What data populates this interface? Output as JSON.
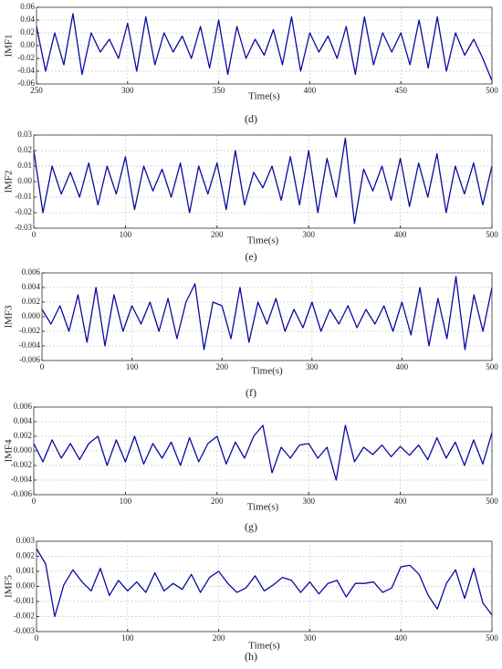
{
  "chart_data": [
    {
      "type": "line",
      "y_label": "IMF1",
      "x_label": "Time(s)",
      "caption": "(d)",
      "color": "#0a0aa0",
      "grid": true,
      "xlim": [
        250,
        500
      ],
      "xticks": [
        250,
        300,
        350,
        400,
        450,
        500
      ],
      "ylim": [
        -0.06,
        0.06
      ],
      "yticks": [
        -0.06,
        -0.04,
        -0.02,
        {
          "value": 0,
          "label": "0.00"
        },
        0.02,
        0.04,
        0.06
      ],
      "x": [
        250,
        255,
        260,
        265,
        270,
        275,
        280,
        285,
        290,
        295,
        300,
        305,
        310,
        315,
        320,
        325,
        330,
        335,
        340,
        345,
        350,
        355,
        360,
        365,
        370,
        375,
        380,
        385,
        390,
        395,
        400,
        405,
        410,
        415,
        420,
        425,
        430,
        435,
        440,
        445,
        450,
        455,
        460,
        465,
        470,
        475,
        480,
        485,
        490,
        495,
        500
      ],
      "values": [
        0.03,
        -0.04,
        0.02,
        -0.03,
        0.05,
        -0.045,
        0.02,
        -0.01,
        0.01,
        -0.02,
        0.035,
        -0.04,
        0.045,
        -0.03,
        0.02,
        -0.01,
        0.015,
        -0.02,
        0.03,
        -0.035,
        0.04,
        -0.045,
        0.03,
        -0.02,
        0.01,
        -0.015,
        0.025,
        -0.03,
        0.045,
        -0.04,
        0.02,
        -0.01,
        0.015,
        -0.02,
        0.03,
        -0.045,
        0.045,
        -0.03,
        0.02,
        -0.01,
        0.02,
        -0.03,
        0.04,
        -0.035,
        0.045,
        -0.04,
        0.02,
        -0.015,
        0.01,
        -0.02,
        -0.055
      ]
    },
    {
      "type": "line",
      "y_label": "IMF2",
      "x_label": "Time(s)",
      "caption": "(e)",
      "color": "#0a0aa0",
      "grid": true,
      "xlim": [
        0,
        500
      ],
      "xticks": [
        0,
        100,
        200,
        300,
        400,
        500
      ],
      "ylim": [
        -0.03,
        0.03
      ],
      "yticks": [
        -0.03,
        -0.02,
        -0.01,
        {
          "value": 0,
          "label": "0.00"
        },
        0.01,
        0.02,
        0.03
      ],
      "x": [
        0,
        10,
        20,
        30,
        40,
        50,
        60,
        70,
        80,
        90,
        100,
        110,
        120,
        130,
        140,
        150,
        160,
        170,
        180,
        190,
        200,
        210,
        220,
        230,
        240,
        250,
        260,
        270,
        280,
        290,
        300,
        310,
        320,
        330,
        340,
        350,
        360,
        370,
        380,
        390,
        400,
        410,
        420,
        430,
        440,
        450,
        460,
        470,
        480,
        490,
        500
      ],
      "values": [
        0.02,
        -0.02,
        0.01,
        -0.008,
        0.006,
        -0.01,
        0.012,
        -0.015,
        0.01,
        -0.008,
        0.016,
        -0.018,
        0.01,
        -0.006,
        0.008,
        -0.01,
        0.012,
        -0.02,
        0.01,
        -0.008,
        0.012,
        -0.018,
        0.02,
        -0.015,
        0.006,
        -0.004,
        0.01,
        -0.012,
        0.016,
        -0.015,
        0.02,
        -0.02,
        0.015,
        -0.01,
        0.028,
        -0.027,
        0.008,
        -0.006,
        0.01,
        -0.012,
        0.015,
        -0.016,
        0.012,
        -0.01,
        0.018,
        -0.02,
        0.01,
        -0.008,
        0.012,
        -0.015,
        0.01
      ]
    },
    {
      "type": "line",
      "y_label": "IMF3",
      "x_label": "Time(s)",
      "caption": "(f)",
      "color": "#0a0aa0",
      "grid": true,
      "xlim": [
        0,
        500
      ],
      "xticks": [
        0,
        100,
        200,
        300,
        400,
        500
      ],
      "ylim": [
        -0.006,
        0.006
      ],
      "yticks": [
        -0.006,
        -0.004,
        -0.002,
        {
          "value": 0,
          "label": "0.000"
        },
        0.002,
        0.004,
        0.006
      ],
      "x": [
        0,
        10,
        20,
        30,
        40,
        50,
        60,
        70,
        80,
        90,
        100,
        110,
        120,
        130,
        140,
        150,
        160,
        170,
        180,
        190,
        200,
        210,
        220,
        230,
        240,
        250,
        260,
        270,
        280,
        290,
        300,
        310,
        320,
        330,
        340,
        350,
        360,
        370,
        380,
        390,
        400,
        410,
        420,
        430,
        440,
        450,
        460,
        470,
        480,
        490,
        500
      ],
      "values": [
        0.001,
        -0.001,
        0.0015,
        -0.002,
        0.003,
        -0.0035,
        0.004,
        -0.004,
        0.003,
        -0.002,
        0.0015,
        -0.001,
        0.002,
        -0.002,
        0.0025,
        -0.003,
        0.002,
        0.0045,
        -0.0045,
        0.002,
        0.0015,
        -0.003,
        0.004,
        -0.0035,
        0.002,
        -0.001,
        0.0025,
        -0.002,
        0.001,
        -0.0015,
        0.002,
        -0.002,
        0.001,
        -0.001,
        0.0015,
        -0.0015,
        0.001,
        -0.001,
        0.0015,
        -0.002,
        0.002,
        -0.0025,
        0.004,
        -0.004,
        0.0025,
        -0.003,
        0.0055,
        -0.0045,
        0.003,
        -0.002,
        0.004
      ]
    },
    {
      "type": "line",
      "y_label": "IMF4",
      "x_label": "Time(s)",
      "caption": "(g)",
      "color": "#0a0aa0",
      "grid": true,
      "xlim": [
        0,
        500
      ],
      "xticks": [
        0,
        100,
        200,
        300,
        400,
        500
      ],
      "ylim": [
        -0.006,
        0.006
      ],
      "yticks": [
        -0.006,
        -0.004,
        -0.002,
        {
          "value": 0,
          "label": "0.000"
        },
        0.002,
        0.004,
        0.006
      ],
      "x": [
        0,
        10,
        20,
        30,
        40,
        50,
        60,
        70,
        80,
        90,
        100,
        110,
        120,
        130,
        140,
        150,
        160,
        170,
        180,
        190,
        200,
        210,
        220,
        230,
        240,
        250,
        260,
        270,
        280,
        290,
        300,
        310,
        320,
        330,
        340,
        350,
        360,
        370,
        380,
        390,
        400,
        410,
        420,
        430,
        440,
        450,
        460,
        470,
        480,
        490,
        500
      ],
      "values": [
        0.001,
        -0.0015,
        0.0015,
        -0.001,
        0.001,
        -0.0012,
        0.001,
        0.002,
        -0.002,
        0.0015,
        -0.0015,
        0.002,
        -0.0018,
        0.001,
        -0.001,
        0.0012,
        -0.002,
        0.0018,
        -0.0015,
        0.001,
        0.002,
        -0.0018,
        0.0012,
        -0.001,
        0.002,
        0.0035,
        -0.003,
        0.0005,
        -0.001,
        0.0008,
        0.001,
        -0.001,
        0.0005,
        -0.004,
        0.0035,
        -0.0015,
        0.0005,
        -0.0005,
        0.0008,
        -0.0008,
        0.0006,
        -0.0006,
        0.0008,
        -0.0012,
        0.0018,
        -0.001,
        0.0012,
        -0.002,
        0.0015,
        -0.0018,
        0.0025
      ]
    },
    {
      "type": "line",
      "y_label": "IMF5",
      "x_label": "Time(s)",
      "caption": "(h)",
      "color": "#0a0aa0",
      "grid": true,
      "xlim": [
        0,
        500
      ],
      "xticks": [
        0,
        100,
        200,
        300,
        400,
        500
      ],
      "ylim": [
        -0.003,
        0.003
      ],
      "yticks": [
        -0.003,
        -0.002,
        -0.001,
        {
          "value": 0,
          "label": "0.000"
        },
        0.001,
        0.002,
        0.003
      ],
      "x": [
        0,
        10,
        20,
        30,
        40,
        50,
        60,
        70,
        80,
        90,
        100,
        110,
        120,
        130,
        140,
        150,
        160,
        170,
        180,
        190,
        200,
        210,
        220,
        230,
        240,
        250,
        260,
        270,
        280,
        290,
        300,
        310,
        320,
        330,
        340,
        350,
        360,
        370,
        380,
        390,
        400,
        410,
        420,
        430,
        440,
        450,
        460,
        470,
        480,
        490,
        500
      ],
      "values": [
        0.0025,
        0.0015,
        -0.002,
        0.0001,
        0.0011,
        0.0003,
        -0.0003,
        0.0012,
        -0.0006,
        0.0004,
        -0.0003,
        0.0003,
        -0.0004,
        0.0009,
        -0.0003,
        0.0002,
        -0.0002,
        0.0008,
        -0.0004,
        0.0006,
        0.001,
        0.0002,
        -0.0004,
        -0.0001,
        0.0007,
        -0.0003,
        0.0001,
        0.0006,
        0.0004,
        -0.0004,
        0.0003,
        -0.0005,
        0.0002,
        0.0004,
        -0.0007,
        0.0002,
        0.0002,
        0.0003,
        -0.0004,
        -0.0001,
        0.0013,
        0.0014,
        0.0008,
        -0.0006,
        -0.0015,
        0.0002,
        0.0011,
        -0.0008,
        0.0012,
        -0.0011,
        -0.0019
      ]
    }
  ]
}
